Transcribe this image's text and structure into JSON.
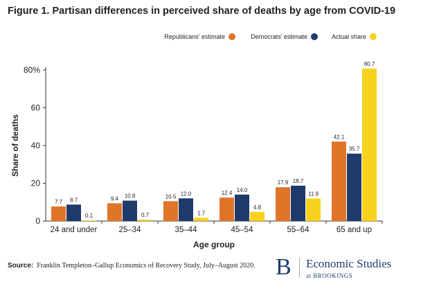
{
  "title": "Figure 1. Partisan differences in perceived share of deaths by age from COVID-19",
  "source_prefix": "Source:",
  "source_text": "Franklin Templeton–Gallup Economics of Recovery Study, July–August 2020.",
  "brand": {
    "mark": "B",
    "name": "Economic Studies",
    "sub": "at BROOKINGS"
  },
  "chart_data": {
    "type": "bar",
    "categories": [
      "24 and under",
      "25–34",
      "35–44",
      "45–54",
      "55–64",
      "65 and up"
    ],
    "series": [
      {
        "name": "Republicans’ estimate",
        "color": "#e07428",
        "values": [
          7.7,
          9.4,
          10.5,
          12.4,
          17.9,
          42.1
        ]
      },
      {
        "name": "Democrats’ estimate",
        "color": "#1f3a6b",
        "values": [
          8.7,
          10.8,
          12.0,
          14.0,
          18.7,
          35.7
        ]
      },
      {
        "name": "Actual share",
        "color": "#f6d21c",
        "values": [
          0.1,
          0.7,
          1.7,
          4.8,
          11.9,
          80.7
        ]
      }
    ],
    "data_labels": [
      [
        "7.7",
        "9.4",
        "10.5",
        "12.4",
        "17.9",
        "42.1"
      ],
      [
        "8.7",
        "10.8",
        "12.0",
        "14.0",
        "18.7",
        "35.7"
      ],
      [
        "0.1",
        "0.7",
        "1.7",
        "4.8",
        "11.9",
        "80.7"
      ]
    ],
    "xlabel": "Age group",
    "ylabel": "Share of deaths",
    "ylim": [
      0,
      80
    ],
    "yticks": [
      0,
      20,
      40,
      60,
      80
    ],
    "ytick_labels": [
      "0",
      "20",
      "40",
      "60",
      "80%"
    ],
    "grid": false,
    "legend_position": "top-right"
  }
}
